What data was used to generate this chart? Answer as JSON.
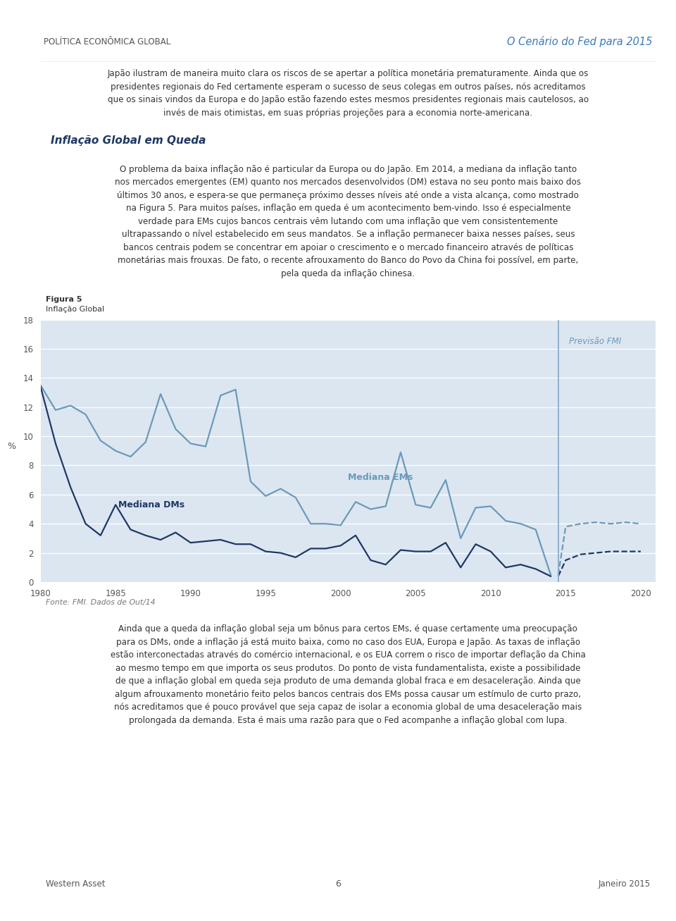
{
  "header_left": "POLÍTICA ECONÔMICA GLOBAL",
  "header_right": "O Cenário do Fed para 2015",
  "figure_label": "Figura 5",
  "figure_title": "Inflação Global",
  "ylabel": "%",
  "source": "Fonte: FMI. Dados de Out/14",
  "forecast_label": "Previsão FMI",
  "em_label": "Mediana EMs",
  "dm_label": "Mediana DMs",
  "background_color": "#ffffff",
  "chart_bg": "#dce6f1",
  "fig_label_bg": "#c5d5e8",
  "line_color_em": "#6b9ab8",
  "line_color_dm": "#1f3864",
  "vline_color": "#8baac8",
  "xmin": 1980,
  "xmax": 2021,
  "ymin": 0,
  "ymax": 18,
  "yticks": [
    0,
    2,
    4,
    6,
    8,
    10,
    12,
    14,
    16,
    18
  ],
  "xticks": [
    1980,
    1985,
    1990,
    1995,
    2000,
    2005,
    2010,
    2015,
    2020
  ],
  "vline_x": 2014.5,
  "em_years": [
    1980,
    1981,
    1982,
    1983,
    1984,
    1985,
    1986,
    1987,
    1988,
    1989,
    1990,
    1991,
    1992,
    1993,
    1994,
    1995,
    1996,
    1997,
    1998,
    1999,
    2000,
    2001,
    2002,
    2003,
    2004,
    2005,
    2006,
    2007,
    2008,
    2009,
    2010,
    2011,
    2012,
    2013,
    2014
  ],
  "em_values": [
    13.5,
    11.8,
    12.1,
    11.5,
    9.7,
    9.0,
    8.6,
    9.6,
    12.9,
    10.5,
    9.5,
    9.3,
    12.8,
    13.2,
    6.9,
    5.9,
    6.4,
    5.8,
    4.0,
    4.0,
    3.9,
    5.5,
    5.0,
    5.2,
    8.9,
    5.3,
    5.1,
    7.0,
    3.0,
    5.1,
    5.2,
    4.2,
    4.0,
    3.6,
    0.5
  ],
  "em_forecast_years": [
    2014.5,
    2015,
    2016,
    2017,
    2018,
    2019,
    2020
  ],
  "em_forecast_values": [
    0.5,
    3.8,
    4.0,
    4.1,
    4.0,
    4.1,
    4.0
  ],
  "dm_years": [
    1980,
    1981,
    1982,
    1983,
    1984,
    1985,
    1986,
    1987,
    1988,
    1989,
    1990,
    1991,
    1992,
    1993,
    1994,
    1995,
    1996,
    1997,
    1998,
    1999,
    2000,
    2001,
    2002,
    2003,
    2004,
    2005,
    2006,
    2007,
    2008,
    2009,
    2010,
    2011,
    2012,
    2013,
    2014
  ],
  "dm_values": [
    13.4,
    9.5,
    6.5,
    4.0,
    3.2,
    5.3,
    3.6,
    3.2,
    2.9,
    3.4,
    2.7,
    2.8,
    2.9,
    2.6,
    2.6,
    2.1,
    2.0,
    1.7,
    2.3,
    2.3,
    2.5,
    3.2,
    1.5,
    1.2,
    2.2,
    2.1,
    2.1,
    2.7,
    1.0,
    2.6,
    2.1,
    1.0,
    1.2,
    0.9,
    0.4
  ],
  "dm_forecast_years": [
    2014.5,
    2015,
    2016,
    2017,
    2018,
    2019,
    2020
  ],
  "dm_forecast_values": [
    0.4,
    1.5,
    1.9,
    2.0,
    2.1,
    2.1,
    2.1
  ],
  "intro_text": "Japão ilustram de maneira muito clara os riscos de se apertar a política monetária prematuramente. Ainda que os\npresidentes regionais do Fed certamente esperam o sucesso de seus colegas em outros países, nós acreditamos\nque os sinais vindos da Europa e do Japão estão fazendo estes mesmos presidentes regionais mais cautelosos, ao\ninvés de mais otimistas, em suas próprias projeções para a economia norte-americana.",
  "section_title": "Inflação Global em Queda",
  "section_text": "O problema da baixa inflação não é particular da Europa ou do Japão. Em 2014, a mediana da inflação tanto\nnos mercados emergentes (EM) quanto nos mercados desenvolvidos (DM) estava no seu ponto mais baixo dos\núltimos 30 anos, e espera-se que permaneça próximo desses níveis até onde a vista alcança, como mostrado\nna Figura 5. Para muitos países, inflação em queda é um acontecimento bem-vindo. Isso é especialmente\nverdade para EMs cujos bancos centrais vêm lutando com uma inflação que vem consistentemente\nultrapassando o nível estabelecido em seus mandatos. Se a inflação permanecer baixa nesses países, seus\nbancos centrais podem se concentrar em apoiar o crescimento e o mercado financeiro através de políticas\nmonetárias mais frouxas. De fato, o recente afrouxamento do Banco do Povo da China foi possível, em parte,\npela queda da inflação chinesa.",
  "bottom_text": "Ainda que a queda da inflação global seja um bônus para certos EMs, é quase certamente uma preocupação\npara os DMs, onde a inflação já está muito baixa, como no caso dos EUA, Europa e Japão. As taxas de inflação\nestão interconectadas através do comércio internacional, e os EUA correm o risco de importar deflação da China\nao mesmo tempo em que importa os seus produtos. Do ponto de vista fundamentalista, existe a possibilidade\nde que a inflação global em queda seja produto de uma demanda global fraca e em desaceleração. Ainda que\nalgum afrouxamento monetário feito pelos bancos centrais dos EMs possa causar um estímulo de curto prazo,\nnós acreditamos que é pouco provável que seja capaz de isolar a economia global de uma desaceleração mais\nprolongada da demanda. Esta é mais uma razão para que o Fed acompanhe a inflação global com lupa.",
  "footer_left": "Western Asset",
  "footer_right": "Janeiro 2015",
  "page_number": "6"
}
